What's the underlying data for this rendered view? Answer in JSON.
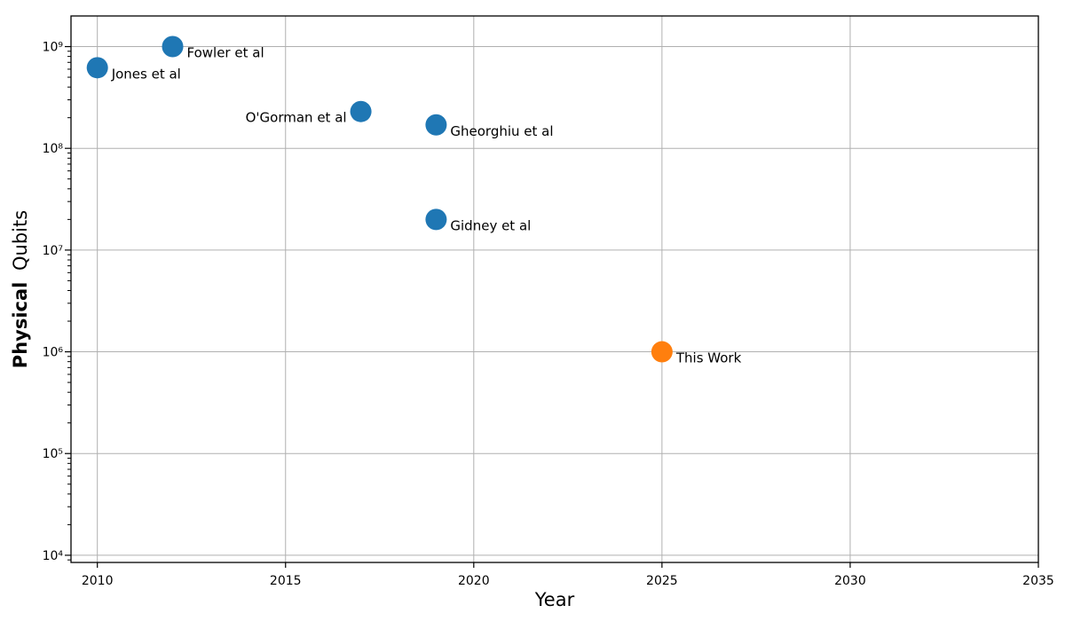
{
  "chart_data": {
    "type": "scatter",
    "title": "",
    "xlabel": "Year",
    "ylabel": "Physical Qubits",
    "ylabel_bold_part": "Physical",
    "ylabel_regular_part": "Qubits",
    "xlim": [
      2009.3,
      2035
    ],
    "ylim": [
      8500,
      2000000000
    ],
    "y_scale": "log",
    "grid": true,
    "legend": false,
    "x_ticks": [
      2010,
      2015,
      2020,
      2025,
      2030,
      2035
    ],
    "y_ticks": [
      10000,
      100000,
      1000000,
      10000000,
      100000000,
      1000000000
    ],
    "points": [
      {
        "label": "Jones et al",
        "year": 2010,
        "qubits": 620000000,
        "color": "#1f77b4",
        "label_side": "right"
      },
      {
        "label": "Fowler et al",
        "year": 2012,
        "qubits": 1000000000,
        "color": "#1f77b4",
        "label_side": "right"
      },
      {
        "label": "O'Gorman et al",
        "year": 2017,
        "qubits": 230000000,
        "color": "#1f77b4",
        "label_side": "left"
      },
      {
        "label": "Gheorghiu et al",
        "year": 2019,
        "qubits": 170000000,
        "color": "#1f77b4",
        "label_side": "right"
      },
      {
        "label": "Gidney et al",
        "year": 2019,
        "qubits": 20000000,
        "color": "#1f77b4",
        "label_side": "right"
      },
      {
        "label": "This Work",
        "year": 2025,
        "qubits": 1000000,
        "color": "#ff7f0e",
        "label_side": "right"
      }
    ],
    "colors": {
      "default_point": "#1f77b4",
      "highlight_point": "#ff7f0e",
      "grid": "#b0b0b0",
      "spine": "#000000",
      "text": "#000000",
      "background": "#ffffff"
    }
  }
}
